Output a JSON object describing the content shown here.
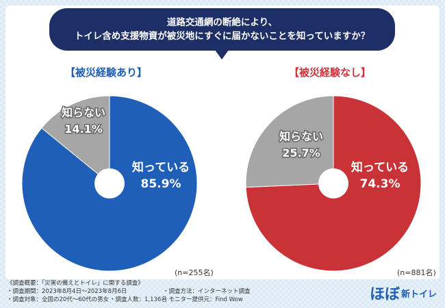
{
  "question": {
    "line1": "道路交通網の断絶により、",
    "line2": "トイレ含め支援物資が被災地にすぐに届かないことを知っていますか？"
  },
  "chart_data": [
    {
      "type": "pie",
      "title": "【被災経験あり】",
      "n_label": "(n=255名)",
      "slices": [
        {
          "label": "知っている",
          "value": 85.9,
          "value_label": "85.9%",
          "color": "#1f5fb8"
        },
        {
          "label": "知らない",
          "value": 14.1,
          "value_label": "14.1%",
          "color": "#a6a6a6"
        }
      ]
    },
    {
      "type": "pie",
      "title": "【被災経験なし】",
      "n_label": "(n=881名)",
      "slices": [
        {
          "label": "知っている",
          "value": 74.3,
          "value_label": "74.3%",
          "color": "#c93237"
        },
        {
          "label": "知らない",
          "value": 25.7,
          "value_label": "25.7%",
          "color": "#a6a6a6"
        }
      ]
    }
  ],
  "footer": {
    "line1": "《調査概要：「災害の備えとトイレ」に関する調査》",
    "period": "・調査期間：2023年8月4日～2023年8月6日",
    "method": "・調査方法：インターネット調査",
    "target": "・調査対象：全国の20代～60代の男女",
    "count": "・調査人数：1,136名",
    "provider": "・モニター提供元：Find Wow"
  },
  "logo": {
    "main": "ほぼ",
    "sub": "新トイレ"
  },
  "colors": {
    "navy": "#1d2f66",
    "blue": "#1f5fb8",
    "red": "#c93237",
    "gray": "#a6a6a6"
  }
}
